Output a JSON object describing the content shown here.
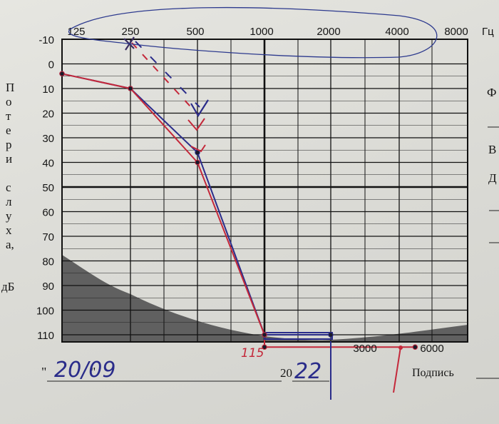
{
  "chart_data": {
    "type": "line",
    "x_ticks": [
      "125",
      "250",
      "500",
      "1000",
      "2000",
      "4000",
      "8000"
    ],
    "x_unit": "Гц",
    "x_ticks_bottom": [
      "3000",
      "6000"
    ],
    "y_ticks": [
      "-10",
      "0",
      "10",
      "20",
      "30",
      "40",
      "50",
      "60",
      "70",
      "80",
      "90",
      "100",
      "110"
    ],
    "ylabel": "Потери слуха, дБ",
    "ylim": [
      -10,
      110
    ],
    "grid": true,
    "series": [
      {
        "color": "#2a2c8a",
        "x": [
          125,
          250,
          500,
          1000,
          2000
        ],
        "y": [
          4,
          10,
          36,
          110,
          110
        ]
      },
      {
        "color": "#c4283a",
        "x": [
          125,
          250,
          500,
          1000,
          1000,
          4700
        ],
        "y": [
          4,
          10,
          40,
          110,
          115,
          115
        ]
      }
    ],
    "shaded_region": {
      "color": "#5a5a5a"
    },
    "handwritten": {
      "date": "20/09",
      "year_suffix": "22",
      "mark_115": "115"
    },
    "printed": {
      "date_open": "\"",
      "date_close": "\"",
      "year_prefix": "20",
      "signature_label": "Подпись"
    },
    "margin_letters": [
      "Ф",
      "В",
      "Д"
    ]
  }
}
